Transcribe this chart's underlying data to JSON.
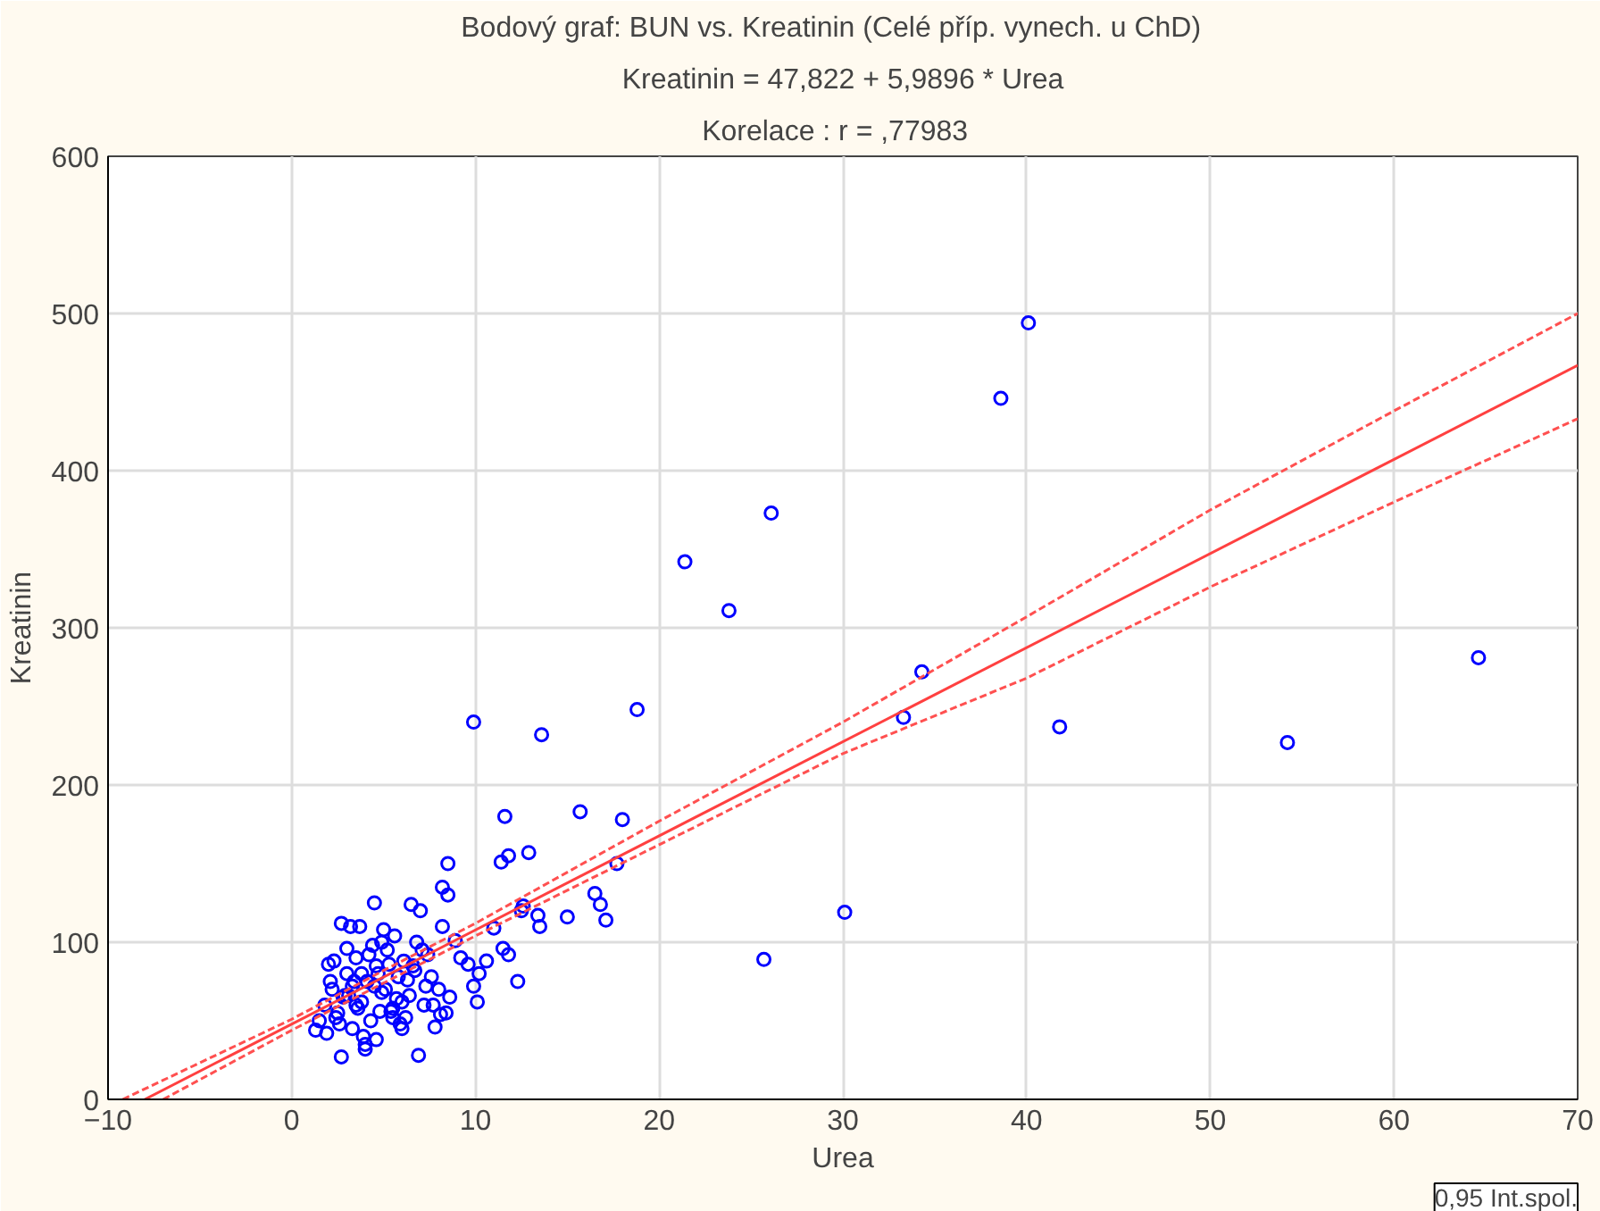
{
  "chart_data": {
    "type": "scatter",
    "title": "Bodový graf: BUN    vs. Kreatinin (Celé příp. vynech. u ChD)",
    "subtitle": "Kreatinin = 47,822 + 5,9896 * Urea",
    "annotations": [
      "Korelace :   r = ,77983",
      "0,95 Int.spol."
    ],
    "xlabel": "Urea",
    "ylabel": "Kreatinin",
    "xlim": [
      -10,
      70
    ],
    "ylim": [
      0,
      600
    ],
    "xticks": [
      -10,
      0,
      10,
      20,
      30,
      40,
      50,
      60,
      70
    ],
    "yticks": [
      0,
      100,
      200,
      300,
      400,
      500,
      600
    ],
    "grid": true,
    "series": [
      {
        "color": "#0000ff",
        "marker": "circle",
        "values": [
          494,
          446,
          373,
          342,
          311,
          272,
          243,
          237,
          227,
          281,
          119,
          89,
          248,
          232,
          240,
          183,
          178,
          180,
          150,
          151,
          155,
          157,
          150,
          135,
          130,
          123,
          120,
          117,
          116,
          110,
          131,
          124,
          114,
          109,
          75,
          96,
          92,
          72,
          62,
          88,
          80,
          125,
          124,
          120,
          110,
          101,
          55,
          44,
          27,
          32,
          86,
          110,
          110,
          50,
          60,
          70,
          55,
          65,
          80,
          45,
          90,
          62,
          75,
          50,
          85,
          68,
          95,
          58,
          78,
          88,
          66,
          100,
          72,
          60,
          75,
          48,
          66,
          58,
          92,
          80,
          70,
          104,
          62,
          85,
          95,
          78,
          70,
          42,
          52,
          66,
          75,
          40,
          98,
          56,
          86,
          64,
          52,
          82,
          60,
          96,
          35,
          108,
          45,
          88,
          60,
          72,
          56,
          76,
          92,
          65,
          90,
          86,
          80,
          100,
          48,
          112,
          72,
          38,
          52,
          28,
          46,
          54
        ],
        "x": [
          40.1,
          38.6,
          26.1,
          21.4,
          23.8,
          34.3,
          33.3,
          41.8,
          54.2,
          64.6,
          30.1,
          25.7,
          18.8,
          13.6,
          9.9,
          15.7,
          18.0,
          11.6,
          17.7,
          11.4,
          11.8,
          12.9,
          8.5,
          8.2,
          8.5,
          12.6,
          12.5,
          13.4,
          15.0,
          13.5,
          16.5,
          16.8,
          17.1,
          11.0,
          12.3,
          11.5,
          11.8,
          9.9,
          10.1,
          10.6,
          10.2,
          4.5,
          6.5,
          7.0,
          8.2,
          8.9,
          8.4,
          1.3,
          2.7,
          4.0,
          2.0,
          3.2,
          3.7,
          1.5,
          1.8,
          2.2,
          2.5,
          2.8,
          3.0,
          3.3,
          3.5,
          3.8,
          4.1,
          4.3,
          4.6,
          4.9,
          5.2,
          5.5,
          5.8,
          6.1,
          6.4,
          6.8,
          7.3,
          7.7,
          2.1,
          2.6,
          3.1,
          3.6,
          4.2,
          4.7,
          5.1,
          5.6,
          6.0,
          6.6,
          7.1,
          7.6,
          8.0,
          1.9,
          2.4,
          2.9,
          3.4,
          3.9,
          4.4,
          4.8,
          5.3,
          5.7,
          6.2,
          6.7,
          7.2,
          3.0,
          4.0,
          5.0,
          6.0,
          2.3,
          3.5,
          4.5,
          5.4,
          6.3,
          7.4,
          8.6,
          9.2,
          9.6,
          3.8,
          4.9,
          5.9,
          2.7,
          3.3,
          4.6,
          5.5,
          6.9,
          7.8,
          8.1
        ]
      },
      {
        "type": "line",
        "color": "#ff4040",
        "line_style": "solid",
        "x": [
          -8,
          70
        ],
        "values": [
          0,
          467
        ]
      },
      {
        "type": "line",
        "color": "#ff5050",
        "line_style": "dashed",
        "x": [
          -9.2,
          0,
          5,
          10,
          20,
          30,
          40,
          50,
          60,
          70
        ],
        "values": [
          0,
          51,
          82,
          112,
          177,
          240,
          307,
          375,
          438,
          500
        ]
      },
      {
        "type": "line",
        "color": "#ff5050",
        "line_style": "dashed",
        "x": [
          -7,
          0,
          5,
          10,
          20,
          30,
          40,
          50,
          60,
          70
        ],
        "values": [
          0,
          44,
          74,
          104,
          162,
          220,
          268,
          326,
          380,
          433
        ]
      }
    ]
  }
}
